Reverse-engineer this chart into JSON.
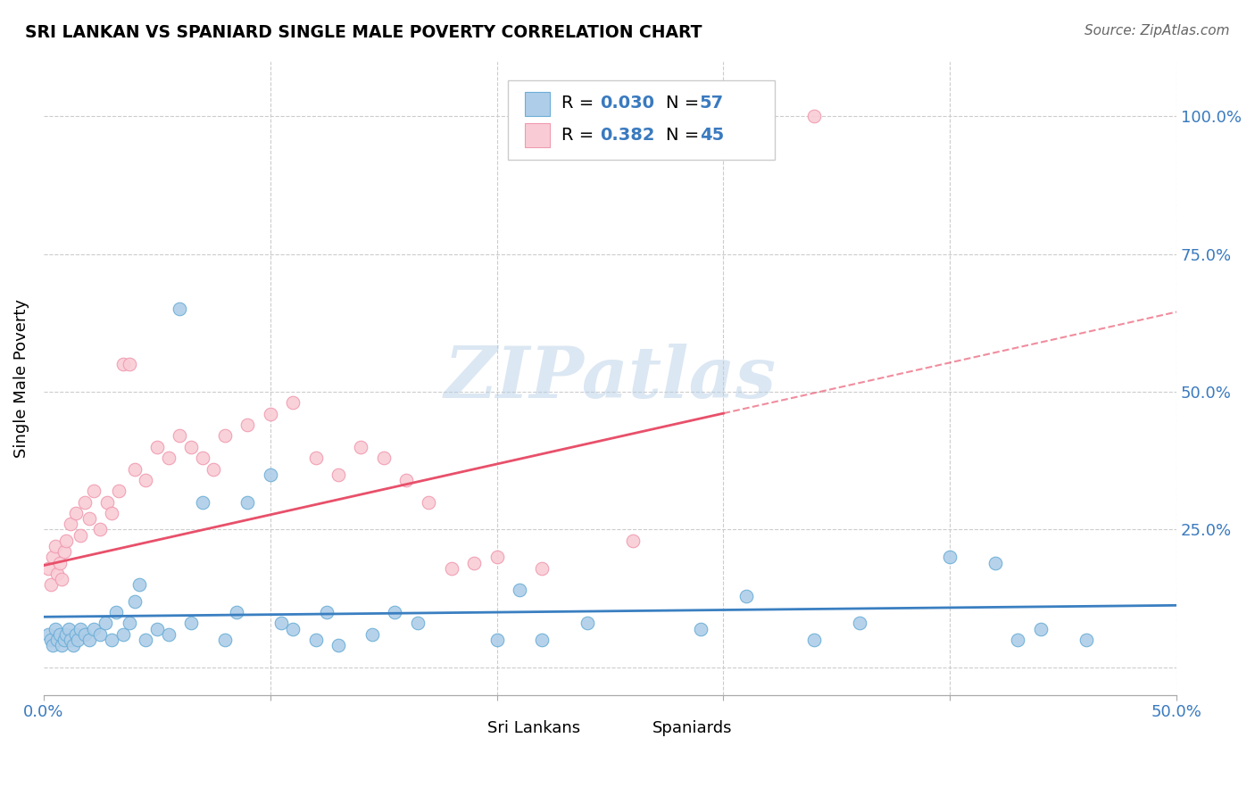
{
  "title": "SRI LANKAN VS SPANIARD SINGLE MALE POVERTY CORRELATION CHART",
  "source": "Source: ZipAtlas.com",
  "ylabel": "Single Male Poverty",
  "xlim": [
    0.0,
    0.5
  ],
  "ylim": [
    -0.05,
    1.1
  ],
  "xtick_pos": [
    0.0,
    0.1,
    0.2,
    0.3,
    0.4,
    0.5
  ],
  "xticklabels": [
    "0.0%",
    "",
    "",
    "",
    "",
    "50.0%"
  ],
  "ytick_pos": [
    0.0,
    0.25,
    0.5,
    0.75,
    1.0
  ],
  "ytick_labels": [
    "",
    "25.0%",
    "50.0%",
    "75.0%",
    "100.0%"
  ],
  "blue_edge": "#6baed6",
  "blue_fill": "#aecde8",
  "pink_edge": "#f09ab0",
  "pink_fill": "#f9ccd5",
  "trend_blue": "#3a7fc1",
  "trend_pink": "#e8506a",
  "watermark_color": "#b8d0e8",
  "sri_lankans_x": [
    0.002,
    0.003,
    0.004,
    0.005,
    0.006,
    0.007,
    0.008,
    0.009,
    0.01,
    0.011,
    0.012,
    0.013,
    0.014,
    0.015,
    0.016,
    0.018,
    0.02,
    0.022,
    0.025,
    0.027,
    0.03,
    0.032,
    0.035,
    0.038,
    0.04,
    0.042,
    0.045,
    0.05,
    0.055,
    0.06,
    0.065,
    0.07,
    0.08,
    0.085,
    0.09,
    0.1,
    0.105,
    0.11,
    0.12,
    0.125,
    0.13,
    0.145,
    0.155,
    0.165,
    0.2,
    0.21,
    0.22,
    0.24,
    0.29,
    0.31,
    0.34,
    0.36,
    0.4,
    0.42,
    0.43,
    0.44,
    0.46
  ],
  "sri_lankans_y": [
    0.06,
    0.05,
    0.04,
    0.07,
    0.05,
    0.06,
    0.04,
    0.05,
    0.06,
    0.07,
    0.05,
    0.04,
    0.06,
    0.05,
    0.07,
    0.06,
    0.05,
    0.07,
    0.06,
    0.08,
    0.05,
    0.1,
    0.06,
    0.08,
    0.12,
    0.15,
    0.05,
    0.07,
    0.06,
    0.65,
    0.08,
    0.3,
    0.05,
    0.1,
    0.3,
    0.35,
    0.08,
    0.07,
    0.05,
    0.1,
    0.04,
    0.06,
    0.1,
    0.08,
    0.05,
    0.14,
    0.05,
    0.08,
    0.07,
    0.13,
    0.05,
    0.08,
    0.2,
    0.19,
    0.05,
    0.07,
    0.05
  ],
  "spaniards_x": [
    0.002,
    0.003,
    0.004,
    0.005,
    0.006,
    0.007,
    0.008,
    0.009,
    0.01,
    0.012,
    0.014,
    0.016,
    0.018,
    0.02,
    0.022,
    0.025,
    0.028,
    0.03,
    0.033,
    0.035,
    0.038,
    0.04,
    0.045,
    0.05,
    0.055,
    0.06,
    0.065,
    0.07,
    0.075,
    0.08,
    0.09,
    0.1,
    0.11,
    0.12,
    0.13,
    0.14,
    0.15,
    0.16,
    0.17,
    0.18,
    0.19,
    0.2,
    0.22,
    0.26,
    0.34
  ],
  "spaniards_y": [
    0.18,
    0.15,
    0.2,
    0.22,
    0.17,
    0.19,
    0.16,
    0.21,
    0.23,
    0.26,
    0.28,
    0.24,
    0.3,
    0.27,
    0.32,
    0.25,
    0.3,
    0.28,
    0.32,
    0.55,
    0.55,
    0.36,
    0.34,
    0.4,
    0.38,
    0.42,
    0.4,
    0.38,
    0.36,
    0.42,
    0.44,
    0.46,
    0.48,
    0.38,
    0.35,
    0.4,
    0.38,
    0.34,
    0.3,
    0.18,
    0.19,
    0.2,
    0.18,
    0.23,
    1.0
  ]
}
